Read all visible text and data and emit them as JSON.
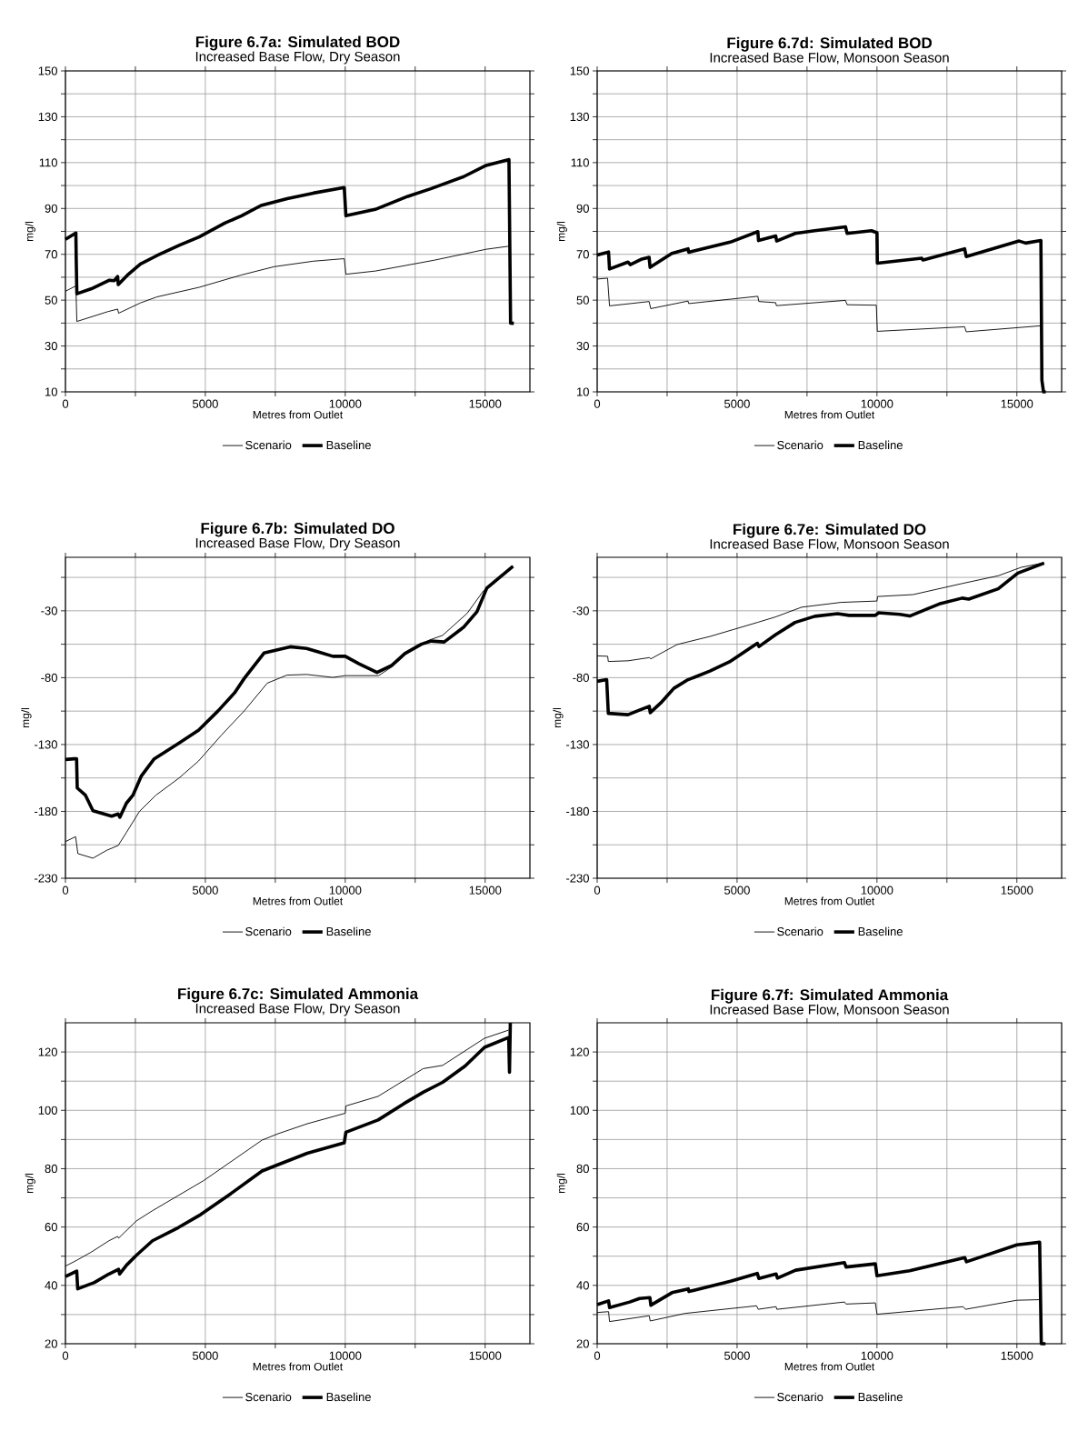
{
  "chart_data": [
    {
      "type": "line",
      "title": "Figure 6.7a: Simulated BOD",
      "subtitle": "Increased Base Flow, Dry Season",
      "xlabel": "Metres from Outlet",
      "ylabel": "mg/l",
      "xlim": [
        0,
        16600
      ],
      "ylim": [
        10,
        150
      ],
      "xticks": [
        0,
        {
          "value": 2500,
          "label": null
        },
        5000,
        {
          "value": 7500,
          "label": null
        },
        10000,
        {
          "value": 12500,
          "label": null
        },
        15000
      ],
      "yticks": [
        10,
        {
          "value": 20,
          "label": null
        },
        30,
        {
          "value": 40,
          "label": null
        },
        50,
        {
          "value": 60,
          "label": null
        },
        70,
        {
          "value": 80,
          "label": null
        },
        90,
        {
          "value": 100,
          "label": null
        },
        110,
        {
          "value": 120,
          "label": null
        },
        130,
        {
          "value": 140,
          "label": null
        },
        150
      ],
      "grid": true,
      "legend": "bottom",
      "series": [
        {
          "name": "Scenario",
          "color": "#000000",
          "x": [
            0,
            373,
            408,
            1515,
            1865,
            1900,
            2681,
            3263,
            4779,
            6294,
            7459,
            8858,
            9965,
            10023,
            11072,
            13170,
            15035,
            15828
          ],
          "values": [
            53.9,
            56.2,
            40.7,
            45,
            46.1,
            44.3,
            48.8,
            51.4,
            55.6,
            61,
            64.6,
            67,
            68.1,
            61.3,
            62.7,
            67.4,
            72.2,
            73.5
          ]
        },
        {
          "name": "Baseline",
          "color": "#000000",
          "x": [
            0,
            373,
            385,
            408,
            932,
            1573,
            1748,
            1865,
            1888,
            2214,
            2681,
            3263,
            4079,
            4779,
            5711,
            6294,
            6993,
            7925,
            8858,
            9965,
            10023,
            11072,
            12238,
            13054,
            14219,
            15035,
            15851,
            15909,
            16026
          ],
          "values": [
            76.5,
            79.3,
            68,
            52.8,
            55,
            58.7,
            58.5,
            60.3,
            56.8,
            60.9,
            65.8,
            69.4,
            74,
            77.6,
            83.7,
            86.8,
            91.3,
            94.3,
            96.7,
            99.1,
            86.8,
            89.6,
            95.3,
            98.6,
            103.8,
            108.8,
            111.3,
            40,
            39.9
          ]
        }
      ]
    },
    {
      "type": "line",
      "title": "Figure 6.7d: Simulated BOD",
      "subtitle": "Increased Base Flow, Monsoon Season",
      "xlabel": "Metres from Outlet",
      "ylabel": "mg/l",
      "xlim": [
        0,
        16600
      ],
      "ylim": [
        10,
        150
      ],
      "xticks": [
        0,
        {
          "value": 2500,
          "label": null
        },
        5000,
        {
          "value": 7500,
          "label": null
        },
        10000,
        {
          "value": 12500,
          "label": null
        },
        15000
      ],
      "yticks": [
        10,
        {
          "value": 20,
          "label": null
        },
        30,
        {
          "value": 40,
          "label": null
        },
        50,
        {
          "value": 60,
          "label": null
        },
        70,
        {
          "value": 80,
          "label": null
        },
        90,
        {
          "value": 100,
          "label": null
        },
        110,
        {
          "value": 120,
          "label": null
        },
        130,
        {
          "value": 140,
          "label": null
        },
        150
      ],
      "grid": true,
      "legend": "bottom",
      "series": [
        {
          "name": "Scenario",
          "color": "#000000",
          "x": [
            0,
            371,
            441,
            1856,
            1914,
            3248,
            3271,
            5742,
            5777,
            6381,
            6404,
            8875,
            8933,
            9977,
            10012,
            13132,
            13190,
            15835
          ],
          "values": [
            59.2,
            59.6,
            47.5,
            49.4,
            46.3,
            49.6,
            48.5,
            51.7,
            49.4,
            48.9,
            47.6,
            49.9,
            48,
            47.8,
            36.4,
            38.4,
            36.2,
            38.8
          ]
        },
        {
          "name": "Baseline",
          "color": "#000000",
          "x": [
            0,
            406,
            441,
            1102,
            1183,
            1566,
            1856,
            1891,
            2668,
            3248,
            3271,
            4756,
            5742,
            5766,
            6381,
            6415,
            7077,
            7773,
            8875,
            8933,
            9803,
            10000,
            10012,
            11601,
            11636,
            13132,
            13190,
            15081,
            15313,
            15858,
            15893,
            15951,
            16032
          ],
          "values": [
            69.7,
            71,
            63.6,
            66.6,
            65.5,
            67.8,
            68.7,
            64.3,
            70.4,
            72.4,
            70.9,
            75.3,
            79.9,
            76,
            78,
            75.8,
            79.1,
            80.3,
            82,
            79.1,
            80.3,
            79.4,
            66.1,
            68.3,
            67.5,
            72.4,
            69,
            75.8,
            74.9,
            76,
            15.2,
            10,
            10
          ]
        }
      ]
    },
    {
      "type": "line",
      "title": "Figure 6.7b: Simulated DO",
      "subtitle": "Increased Base Flow, Dry Season",
      "xlabel": "Metres from Outlet",
      "ylabel": "mg/l",
      "xlim": [
        0,
        16600
      ],
      "ylim": [
        -230,
        10
      ],
      "xticks": [
        0,
        {
          "value": 2500,
          "label": null
        },
        5000,
        {
          "value": 7500,
          "label": null
        },
        10000,
        {
          "value": 12500,
          "label": null
        },
        15000
      ],
      "yticks": [
        -230,
        {
          "value": -205,
          "label": null
        },
        -180,
        {
          "value": -155,
          "label": null
        },
        -130,
        {
          "value": -105,
          "label": null
        },
        -80,
        {
          "value": -55,
          "label": null
        },
        -30,
        {
          "value": -5,
          "label": null
        }
      ],
      "grid": true,
      "legend": "bottom",
      "series": [
        {
          "name": "Scenario",
          "color": "#000000",
          "x": [
            0,
            363,
            445,
            984,
            1476,
            1885,
            2178,
            2646,
            3232,
            4052,
            4754,
            5574,
            6393,
            7213,
            7916,
            8618,
            9555,
            10000,
            11194,
            11663,
            12365,
            13068,
            13478,
            14356,
            14941,
            15995
          ],
          "values": [
            -202.6,
            -198.9,
            -211.6,
            -215,
            -209.1,
            -205.5,
            -195.8,
            -180,
            -167.9,
            -155.2,
            -142.4,
            -123,
            -104.8,
            -84.1,
            -78.1,
            -77.6,
            -79.8,
            -78.5,
            -78.5,
            -72,
            -58.6,
            -51.4,
            -48.4,
            -31.9,
            -15,
            3.3
          ]
        },
        {
          "name": "Baseline",
          "color": "#000000",
          "x": [
            0,
            304,
            398,
            422,
            714,
            984,
            1651,
            1885,
            1944,
            2178,
            2412,
            2705,
            3173,
            4052,
            4754,
            5457,
            6042,
            6393,
            7096,
            7681,
            8033,
            8618,
            9087,
            9555,
            10000,
            10492,
            11136,
            11663,
            12131,
            12717,
            13068,
            13536,
            14239,
            14707,
            15059,
            15995
          ],
          "values": [
            -141.2,
            -140.7,
            -140.7,
            -162.5,
            -167.9,
            -179.5,
            -183.6,
            -181.9,
            -184.4,
            -173.9,
            -167.9,
            -153.8,
            -140.7,
            -129,
            -119.3,
            -104.8,
            -91.4,
            -80.5,
            -61.6,
            -58.6,
            -56.9,
            -58.2,
            -61.1,
            -64,
            -64,
            -69.6,
            -76.1,
            -70.8,
            -62,
            -55,
            -52.6,
            -53.3,
            -42.1,
            -30.7,
            -13,
            3.3
          ]
        }
      ]
    },
    {
      "type": "line",
      "title": "Figure 6.7e: Simulated DO",
      "subtitle": "Increased Base Flow, Monsoon Season",
      "xlabel": "Metres from Outlet",
      "ylabel": "mg/l",
      "xlim": [
        0,
        16600
      ],
      "ylim": [
        -230,
        10
      ],
      "xticks": [
        0,
        {
          "value": 2500,
          "label": null
        },
        5000,
        {
          "value": 7500,
          "label": null
        },
        10000,
        {
          "value": 12500,
          "label": null
        },
        15000
      ],
      "yticks": [
        -230,
        {
          "value": -205,
          "label": null
        },
        -180,
        {
          "value": -155,
          "label": null
        },
        -130,
        {
          "value": -105,
          "label": null
        },
        -80,
        {
          "value": -55,
          "label": null
        },
        -30,
        {
          "value": -5,
          "label": null
        }
      ],
      "grid": true,
      "legend": "bottom",
      "series": [
        {
          "name": "Scenario",
          "color": "#000000",
          "x": [
            0,
            375,
            398,
            1101,
            1862,
            1920,
            2857,
            4028,
            5726,
            6370,
            7307,
            8712,
            10000,
            10023,
            11288,
            13044,
            14333,
            15152,
            15972
          ],
          "values": [
            -63.7,
            -64,
            -67.9,
            -67.4,
            -65,
            -65.9,
            -55.2,
            -49.2,
            -38.7,
            -34.6,
            -27.3,
            -23.7,
            -22.7,
            -19.3,
            -17.9,
            -9.6,
            -3.8,
            2.5,
            5.9
          ]
        },
        {
          "name": "Baseline",
          "color": "#000000",
          "x": [
            0,
            340,
            398,
            1101,
            1569,
            1862,
            1897,
            2272,
            2740,
            3208,
            4028,
            4731,
            5726,
            5785,
            6370,
            7073,
            7775,
            8595,
            9005,
            9941,
            10059,
            10820,
            11171,
            12225,
            13044,
            13279,
            14333,
            15035,
            15972
          ],
          "values": [
            -82.7,
            -81.5,
            -106.7,
            -107.7,
            -103.8,
            -101.4,
            -106.2,
            -98.9,
            -88,
            -81.9,
            -75.1,
            -68.1,
            -54.3,
            -56.7,
            -48,
            -38.7,
            -34.1,
            -32.2,
            -33.4,
            -33.4,
            -31.5,
            -32.7,
            -33.9,
            -24.9,
            -20.5,
            -21.3,
            -13.5,
            -1.8,
            5.7
          ]
        }
      ]
    },
    {
      "type": "line",
      "title": "Figure 6.7c: Simulated Ammonia",
      "subtitle": "Increased Base Flow, Dry Season",
      "xlabel": "Metres from Outlet",
      "ylabel": "mg/l",
      "xlim": [
        0,
        16600
      ],
      "ylim": [
        20,
        130
      ],
      "xticks": [
        0,
        {
          "value": 2500,
          "label": null
        },
        5000,
        {
          "value": 7500,
          "label": null
        },
        10000,
        {
          "value": 12500,
          "label": null
        },
        15000
      ],
      "yticks": [
        20,
        {
          "value": 30,
          "label": null
        },
        40,
        {
          "value": 50,
          "label": null
        },
        60,
        {
          "value": 70,
          "label": null
        },
        80,
        {
          "value": 90,
          "label": null
        },
        100,
        {
          "value": 110,
          "label": null
        },
        120
      ],
      "grid": true,
      "legend": "bottom",
      "series": [
        {
          "name": "Scenario",
          "color": "#000000",
          "x": [
            0,
            403,
            922,
            1555,
            1866,
            1901,
            2535,
            3111,
            4954,
            7028,
            7604,
            8641,
            10000,
            10023,
            11175,
            12788,
            13479,
            14977,
            15841
          ],
          "values": [
            46.6,
            48.6,
            51.4,
            55.3,
            56.8,
            56.2,
            62.1,
            65.6,
            76,
            89.8,
            92,
            95.4,
            99,
            101.5,
            104.8,
            114.3,
            115.4,
            124.7,
            127.5
          ]
        },
        {
          "name": "Baseline",
          "color": "#000000",
          "x": [
            0,
            403,
            438,
            1037,
            1555,
            1901,
            1935,
            2189,
            2535,
            3111,
            4032,
            4839,
            5876,
            7028,
            7604,
            8641,
            9965,
            10023,
            11175,
            12097,
            12788,
            13479,
            14286,
            14977,
            15841,
            15870,
            15900
          ],
          "values": [
            43,
            44.9,
            38.8,
            41,
            43.9,
            45.5,
            43.9,
            47,
            50.3,
            55.3,
            59.8,
            64.3,
            71.2,
            79.2,
            81.4,
            85.3,
            88.9,
            92.5,
            96.7,
            102.3,
            106.2,
            109.6,
            115.2,
            121.6,
            125,
            113,
            130
          ]
        }
      ]
    },
    {
      "type": "line",
      "title": "Figure 6.7f: Simulated Ammonia",
      "subtitle": "Increased Base Flow, Monsoon Season",
      "xlabel": "Metres from Outlet",
      "ylabel": "mg/l",
      "xlim": [
        0,
        16600
      ],
      "ylim": [
        20,
        130
      ],
      "xticks": [
        0,
        {
          "value": 2500,
          "label": null
        },
        5000,
        {
          "value": 7500,
          "label": null
        },
        10000,
        {
          "value": 12500,
          "label": null
        },
        15000
      ],
      "yticks": [
        20,
        {
          "value": 30,
          "label": null
        },
        40,
        {
          "value": 50,
          "label": null
        },
        60,
        {
          "value": 70,
          "label": null
        },
        80,
        {
          "value": 90,
          "label": null
        },
        100,
        {
          "value": 110,
          "label": null
        },
        120
      ],
      "grid": true,
      "legend": "bottom",
      "series": [
        {
          "name": "Scenario",
          "color": "#000000",
          "x": [
            0,
            407,
            442,
            1860,
            1895,
            3140,
            5698,
            5756,
            6395,
            6419,
            8837,
            8895,
            9942,
            10000,
            13081,
            13163,
            15000,
            15814
          ],
          "values": [
            30.7,
            31,
            27.6,
            29.6,
            27.8,
            30.4,
            33,
            31.8,
            32.7,
            31.8,
            34.3,
            33.6,
            34,
            30.1,
            32.7,
            31.8,
            34.9,
            35.1
          ]
        },
        {
          "name": "Baseline",
          "color": "#000000",
          "x": [
            0,
            407,
            442,
            1163,
            1512,
            1884,
            1919,
            2674,
            3256,
            3279,
            4767,
            5721,
            5779,
            6395,
            6442,
            7093,
            8837,
            8895,
            9942,
            10000,
            11163,
            13140,
            13198,
            15000,
            15814,
            15872,
            16023
          ],
          "values": [
            33.4,
            34.7,
            32.4,
            34.3,
            35.5,
            35.8,
            33.2,
            37.5,
            38.8,
            37.9,
            41.4,
            44.1,
            42.4,
            43.9,
            42.5,
            45.2,
            47.8,
            46.3,
            47.4,
            43.3,
            45,
            49.5,
            48.1,
            53.9,
            54.8,
            20,
            20
          ]
        }
      ]
    }
  ]
}
